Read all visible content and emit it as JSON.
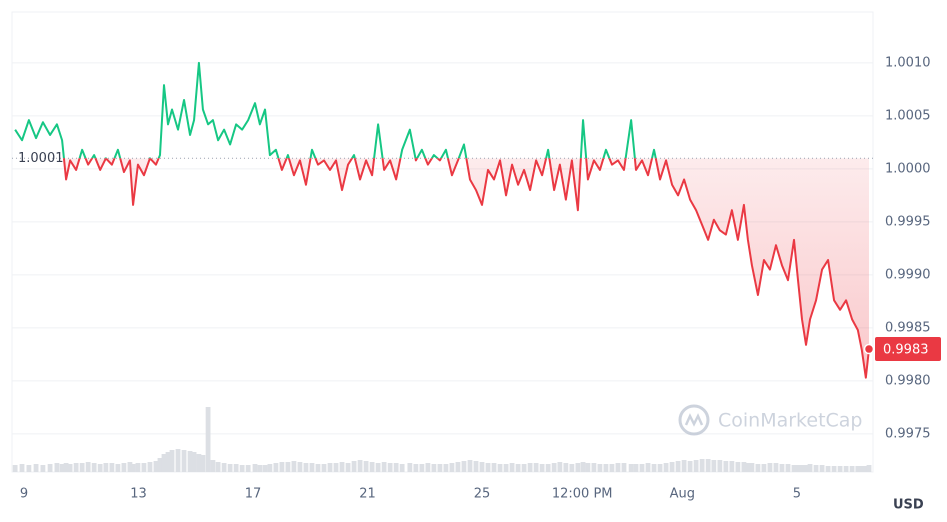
{
  "chart_data": {
    "type": "line",
    "up_color": "#16c784",
    "down_color": "#ea3943",
    "volume_color": "#dcdfe4",
    "watermark": "CoinMarketCap",
    "currency": "USD",
    "baseline": 1.0001,
    "current_price": 0.9983,
    "xlim": [
      8.58,
      38.66
    ],
    "xticks": [
      9,
      13,
      17,
      21,
      25,
      {
        "value": 28.5,
        "label": "12:00 PM"
      },
      {
        "value": 32,
        "label": "Aug"
      },
      {
        "value": 36,
        "label": "5"
      }
    ],
    "ylim": [
      0.99714,
      1.00148
    ],
    "yticks": [
      {
        "value": 1.001,
        "label": "1.0010"
      },
      1.0005,
      {
        "value": 1.0,
        "label": "1.0000"
      },
      0.9995,
      {
        "value": 0.999,
        "label": "0.9990"
      },
      0.9985,
      {
        "value": 0.998,
        "label": "0.9980"
      },
      0.9975
    ],
    "grid": true,
    "x": [
      8.69,
      8.93,
      9.17,
      9.42,
      9.66,
      9.91,
      10.15,
      10.33,
      10.47,
      10.61,
      10.82,
      11.03,
      11.24,
      11.45,
      11.66,
      11.86,
      12.07,
      12.28,
      12.49,
      12.7,
      12.81,
      12.98,
      13.19,
      13.4,
      13.61,
      13.75,
      13.89,
      14.03,
      14.17,
      14.38,
      14.59,
      14.8,
      14.94,
      15.11,
      15.25,
      15.43,
      15.6,
      15.78,
      15.99,
      16.2,
      16.41,
      16.62,
      16.83,
      17.07,
      17.24,
      17.42,
      17.59,
      17.8,
      18.01,
      18.22,
      18.43,
      18.64,
      18.85,
      19.06,
      19.27,
      19.48,
      19.69,
      19.9,
      20.11,
      20.32,
      20.53,
      20.74,
      20.95,
      21.16,
      21.37,
      21.58,
      21.79,
      22.0,
      22.21,
      22.48,
      22.69,
      22.9,
      23.11,
      23.32,
      23.53,
      23.74,
      23.95,
      24.16,
      24.37,
      24.58,
      24.79,
      25.0,
      25.21,
      25.42,
      25.63,
      25.84,
      26.05,
      26.26,
      26.47,
      26.68,
      26.89,
      27.1,
      27.31,
      27.52,
      27.72,
      27.93,
      28.14,
      28.35,
      28.53,
      28.7,
      28.91,
      29.12,
      29.33,
      29.54,
      29.75,
      29.96,
      30.21,
      30.38,
      30.59,
      30.8,
      31.01,
      31.22,
      31.43,
      31.64,
      31.85,
      32.06,
      32.27,
      32.48,
      32.69,
      32.9,
      33.1,
      33.31,
      33.52,
      33.73,
      33.94,
      34.15,
      34.29,
      34.43,
      34.64,
      34.85,
      35.06,
      35.27,
      35.48,
      35.69,
      35.9,
      36.04,
      36.18,
      36.32,
      36.46,
      36.67,
      36.88,
      37.09,
      37.3,
      37.51,
      37.72,
      37.93,
      38.13,
      38.27,
      38.41,
      38.52
    ],
    "values": [
      1.00037,
      1.00027,
      1.00046,
      1.00029,
      1.00044,
      1.00032,
      1.00042,
      1.00027,
      0.9999,
      1.00008,
      0.99999,
      1.00018,
      1.00004,
      1.00013,
      0.99999,
      1.0001,
      1.00004,
      1.00018,
      0.99997,
      1.00008,
      0.99966,
      1.00004,
      0.99994,
      1.0001,
      1.00004,
      1.00013,
      1.00079,
      1.00042,
      1.00056,
      1.00037,
      1.00065,
      1.00032,
      1.00046,
      1.001,
      1.00056,
      1.00042,
      1.00046,
      1.00027,
      1.00037,
      1.00023,
      1.00042,
      1.00037,
      1.00046,
      1.00062,
      1.00042,
      1.00056,
      1.00013,
      1.00018,
      0.99999,
      1.00013,
      0.99994,
      1.00008,
      0.99985,
      1.00018,
      1.00004,
      1.00008,
      0.99999,
      1.00008,
      0.9998,
      1.00004,
      1.00013,
      0.9999,
      1.00008,
      0.99994,
      1.00042,
      0.99999,
      1.00008,
      0.9999,
      1.00018,
      1.00037,
      1.00008,
      1.00018,
      1.00004,
      1.00013,
      1.00008,
      1.00018,
      0.99994,
      1.00008,
      1.00023,
      0.9999,
      0.9998,
      0.99966,
      0.99999,
      0.9999,
      1.00008,
      0.99975,
      1.00004,
      0.99985,
      0.99999,
      0.9998,
      1.00008,
      0.99994,
      1.00018,
      0.9998,
      1.00004,
      0.99971,
      1.00008,
      0.99961,
      1.00046,
      0.9999,
      1.00008,
      0.99999,
      1.00018,
      1.00004,
      1.00008,
      0.99999,
      1.00046,
      0.99999,
      1.00008,
      0.99994,
      1.00018,
      0.9999,
      1.00008,
      0.99985,
      0.99975,
      0.9999,
      0.99971,
      0.99961,
      0.99947,
      0.99933,
      0.99952,
      0.99942,
      0.99938,
      0.99961,
      0.99933,
      0.99966,
      0.99933,
      0.99909,
      0.99881,
      0.99914,
      0.99905,
      0.99928,
      0.99909,
      0.99895,
      0.99933,
      0.99895,
      0.99858,
      0.99834,
      0.99858,
      0.99876,
      0.99905,
      0.99914,
      0.99876,
      0.99867,
      0.99876,
      0.99858,
      0.99848,
      0.99829,
      0.99803,
      0.9983
    ],
    "volume": [
      7,
      8,
      7,
      8,
      7,
      8,
      9,
      8,
      9,
      8,
      9,
      9,
      10,
      9,
      8,
      9,
      9,
      8,
      9,
      10,
      8,
      9,
      9,
      10,
      11,
      14,
      18,
      20,
      22,
      23,
      22,
      21,
      20,
      18,
      17,
      65,
      12,
      10,
      9,
      8,
      8,
      7,
      7,
      8,
      7,
      7,
      8,
      9,
      10,
      10,
      11,
      10,
      9,
      9,
      8,
      8,
      9,
      9,
      10,
      9,
      11,
      12,
      11,
      10,
      9,
      10,
      9,
      9,
      8,
      9,
      8,
      8,
      9,
      8,
      8,
      8,
      9,
      10,
      11,
      12,
      11,
      10,
      9,
      9,
      8,
      8,
      9,
      8,
      8,
      9,
      9,
      8,
      8,
      9,
      10,
      9,
      8,
      9,
      10,
      9,
      9,
      8,
      8,
      8,
      9,
      9,
      8,
      8,
      8,
      9,
      8,
      8,
      9,
      10,
      11,
      12,
      11,
      12,
      13,
      13,
      12,
      12,
      11,
      11,
      10,
      10,
      9,
      9,
      8,
      8,
      9,
      9,
      8,
      8,
      7,
      7,
      7,
      7,
      8,
      7,
      7,
      6,
      6,
      6,
      6,
      6,
      6,
      6,
      6,
      7
    ]
  }
}
